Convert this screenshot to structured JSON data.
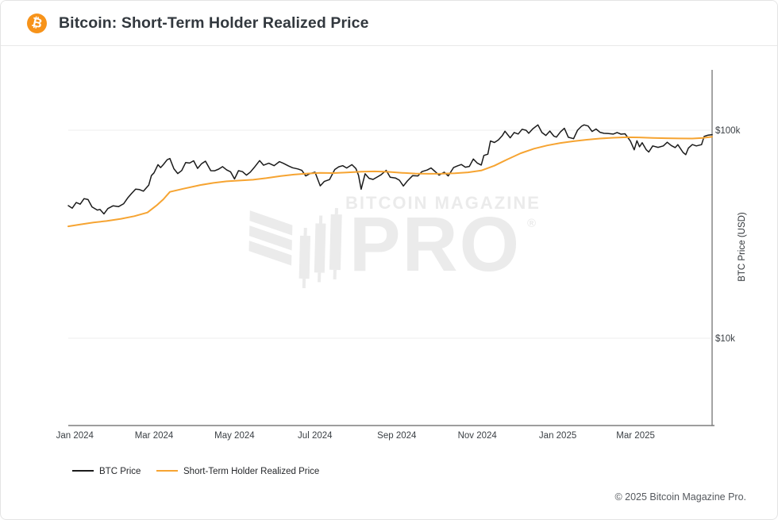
{
  "header": {
    "title": "Bitcoin: Short-Term Holder Realized Price",
    "icon_glyph": "₿"
  },
  "watermark": {
    "line1": "BITCOIN MAGAZINE",
    "line2": "PRO",
    "registered": "®"
  },
  "footer": {
    "copyright": "© 2025 Bitcoin Magazine Pro."
  },
  "colors": {
    "brand_orange": "#f7931a",
    "btc_line": "#1b1b1b",
    "sth_line": "#f6a432",
    "grid": "#ededed",
    "axis": "#7e7e7e",
    "watermark": "#ebebeb"
  },
  "chart_data": {
    "type": "line",
    "title": "Bitcoin: Short-Term Holder Realized Price",
    "ylabel": "BTC Price (USD)",
    "y_scale": "log",
    "units": "USD thousands",
    "grid": "horizontal-only",
    "legend_position": "bottom-left",
    "x_range": [
      "2023-12-27",
      "2025-04-28"
    ],
    "ylim_k": [
      3.8,
      195
    ],
    "x_ticks": [
      {
        "date": "2024-01-01",
        "label": "Jan 2024"
      },
      {
        "date": "2024-03-01",
        "label": "Mar 2024"
      },
      {
        "date": "2024-05-01",
        "label": "May 2024"
      },
      {
        "date": "2024-07-01",
        "label": "Jul 2024"
      },
      {
        "date": "2024-09-01",
        "label": "Sep 2024"
      },
      {
        "date": "2024-11-01",
        "label": "Nov 2024"
      },
      {
        "date": "2025-01-01",
        "label": "Jan 2025"
      },
      {
        "date": "2025-03-01",
        "label": "Mar 2025"
      }
    ],
    "y_ticks": [
      {
        "value_k": 100,
        "label": "$100k"
      },
      {
        "value_k": 10,
        "label": "$10k"
      }
    ],
    "series": [
      {
        "name": "BTC Price",
        "color": "#1b1b1b",
        "points": [
          [
            "2023-12-27",
            43.4
          ],
          [
            "2023-12-30",
            42.2
          ],
          [
            "2024-01-02",
            44.9
          ],
          [
            "2024-01-05",
            44.1
          ],
          [
            "2024-01-08",
            46.9
          ],
          [
            "2024-01-11",
            46.4
          ],
          [
            "2024-01-14",
            42.8
          ],
          [
            "2024-01-18",
            41.3
          ],
          [
            "2024-01-20",
            41.6
          ],
          [
            "2024-01-23",
            39.6
          ],
          [
            "2024-01-26",
            42.0
          ],
          [
            "2024-01-30",
            43.3
          ],
          [
            "2024-02-03",
            42.9
          ],
          [
            "2024-02-07",
            44.3
          ],
          [
            "2024-02-10",
            47.2
          ],
          [
            "2024-02-13",
            49.7
          ],
          [
            "2024-02-16",
            52.1
          ],
          [
            "2024-02-19",
            51.8
          ],
          [
            "2024-02-22",
            50.9
          ],
          [
            "2024-02-26",
            54.5
          ],
          [
            "2024-02-28",
            60.5
          ],
          [
            "2024-03-01",
            62.4
          ],
          [
            "2024-03-04",
            68.3
          ],
          [
            "2024-03-06",
            66.1
          ],
          [
            "2024-03-08",
            68.3
          ],
          [
            "2024-03-11",
            72.1
          ],
          [
            "2024-03-13",
            73.1
          ],
          [
            "2024-03-16",
            65.3
          ],
          [
            "2024-03-19",
            61.9
          ],
          [
            "2024-03-22",
            64.0
          ],
          [
            "2024-03-25",
            69.9
          ],
          [
            "2024-03-28",
            69.5
          ],
          [
            "2024-03-31",
            71.3
          ],
          [
            "2024-04-03",
            65.5
          ],
          [
            "2024-04-06",
            69.0
          ],
          [
            "2024-04-09",
            71.0
          ],
          [
            "2024-04-13",
            63.9
          ],
          [
            "2024-04-16",
            63.8
          ],
          [
            "2024-04-19",
            65.0
          ],
          [
            "2024-04-22",
            66.8
          ],
          [
            "2024-04-25",
            64.5
          ],
          [
            "2024-04-28",
            63.1
          ],
          [
            "2024-05-01",
            58.3
          ],
          [
            "2024-05-04",
            63.9
          ],
          [
            "2024-05-07",
            63.2
          ],
          [
            "2024-05-10",
            60.8
          ],
          [
            "2024-05-13",
            62.9
          ],
          [
            "2024-05-16",
            66.2
          ],
          [
            "2024-05-20",
            71.4
          ],
          [
            "2024-05-23",
            67.9
          ],
          [
            "2024-05-27",
            69.4
          ],
          [
            "2024-05-31",
            67.5
          ],
          [
            "2024-06-04",
            70.6
          ],
          [
            "2024-06-07",
            69.3
          ],
          [
            "2024-06-11",
            67.3
          ],
          [
            "2024-06-14",
            66.0
          ],
          [
            "2024-06-18",
            65.1
          ],
          [
            "2024-06-21",
            64.1
          ],
          [
            "2024-06-24",
            60.3
          ],
          [
            "2024-06-27",
            61.7
          ],
          [
            "2024-07-01",
            62.8
          ],
          [
            "2024-07-05",
            54.0
          ],
          [
            "2024-07-08",
            56.7
          ],
          [
            "2024-07-12",
            57.9
          ],
          [
            "2024-07-16",
            64.7
          ],
          [
            "2024-07-19",
            66.7
          ],
          [
            "2024-07-22",
            67.5
          ],
          [
            "2024-07-25",
            65.8
          ],
          [
            "2024-07-29",
            68.3
          ],
          [
            "2024-08-01",
            65.4
          ],
          [
            "2024-08-03",
            60.7
          ],
          [
            "2024-08-05",
            52.0
          ],
          [
            "2024-08-08",
            61.7
          ],
          [
            "2024-08-11",
            58.7
          ],
          [
            "2024-08-14",
            58.0
          ],
          [
            "2024-08-17",
            59.5
          ],
          [
            "2024-08-20",
            61.0
          ],
          [
            "2024-08-24",
            64.1
          ],
          [
            "2024-08-27",
            59.4
          ],
          [
            "2024-08-31",
            58.9
          ],
          [
            "2024-09-03",
            57.5
          ],
          [
            "2024-09-06",
            53.9
          ],
          [
            "2024-09-09",
            57.0
          ],
          [
            "2024-09-13",
            60.5
          ],
          [
            "2024-09-17",
            60.3
          ],
          [
            "2024-09-20",
            63.2
          ],
          [
            "2024-09-24",
            64.3
          ],
          [
            "2024-09-27",
            65.8
          ],
          [
            "2024-09-30",
            63.3
          ],
          [
            "2024-10-03",
            60.8
          ],
          [
            "2024-10-07",
            62.8
          ],
          [
            "2024-10-10",
            60.3
          ],
          [
            "2024-10-14",
            66.1
          ],
          [
            "2024-10-17",
            67.4
          ],
          [
            "2024-10-20",
            68.4
          ],
          [
            "2024-10-23",
            66.4
          ],
          [
            "2024-10-26",
            67.0
          ],
          [
            "2024-10-29",
            72.7
          ],
          [
            "2024-11-01",
            69.5
          ],
          [
            "2024-11-04",
            68.0
          ],
          [
            "2024-11-06",
            75.6
          ],
          [
            "2024-11-09",
            76.7
          ],
          [
            "2024-11-11",
            88.7
          ],
          [
            "2024-11-14",
            87.3
          ],
          [
            "2024-11-17",
            89.8
          ],
          [
            "2024-11-20",
            94.3
          ],
          [
            "2024-11-22",
            98.9
          ],
          [
            "2024-11-26",
            91.9
          ],
          [
            "2024-11-29",
            97.5
          ],
          [
            "2024-12-02",
            95.9
          ],
          [
            "2024-12-05",
            101.1
          ],
          [
            "2024-12-08",
            99.9
          ],
          [
            "2024-12-10",
            96.6
          ],
          [
            "2024-12-13",
            101.4
          ],
          [
            "2024-12-17",
            106.1
          ],
          [
            "2024-12-20",
            97.5
          ],
          [
            "2024-12-23",
            94.4
          ],
          [
            "2024-12-26",
            99.0
          ],
          [
            "2024-12-29",
            93.7
          ],
          [
            "2024-12-31",
            92.6
          ],
          [
            "2025-01-03",
            98.1
          ],
          [
            "2025-01-06",
            102.1
          ],
          [
            "2025-01-09",
            92.5
          ],
          [
            "2025-01-13",
            91.0
          ],
          [
            "2025-01-16",
            100.0
          ],
          [
            "2025-01-19",
            104.5
          ],
          [
            "2025-01-21",
            106.1
          ],
          [
            "2025-01-24",
            104.8
          ],
          [
            "2025-01-27",
            98.6
          ],
          [
            "2025-01-30",
            101.3
          ],
          [
            "2025-02-02",
            97.7
          ],
          [
            "2025-02-05",
            96.6
          ],
          [
            "2025-02-08",
            96.5
          ],
          [
            "2025-02-12",
            95.8
          ],
          [
            "2025-02-15",
            97.5
          ],
          [
            "2025-02-18",
            95.7
          ],
          [
            "2025-02-21",
            96.1
          ],
          [
            "2025-02-25",
            88.7
          ],
          [
            "2025-02-28",
            80.5
          ],
          [
            "2025-03-02",
            89.0
          ],
          [
            "2025-03-04",
            83.2
          ],
          [
            "2025-03-06",
            87.0
          ],
          [
            "2025-03-09",
            80.7
          ],
          [
            "2025-03-11",
            78.5
          ],
          [
            "2025-03-14",
            84.0
          ],
          [
            "2025-03-18",
            82.7
          ],
          [
            "2025-03-22",
            84.0
          ],
          [
            "2025-03-25",
            87.5
          ],
          [
            "2025-03-28",
            84.4
          ],
          [
            "2025-03-31",
            82.5
          ],
          [
            "2025-04-02",
            85.2
          ],
          [
            "2025-04-06",
            78.2
          ],
          [
            "2025-04-08",
            76.3
          ],
          [
            "2025-04-10",
            82.0
          ],
          [
            "2025-04-13",
            85.3
          ],
          [
            "2025-04-16",
            84.0
          ],
          [
            "2025-04-20",
            85.2
          ],
          [
            "2025-04-22",
            93.4
          ],
          [
            "2025-04-25",
            94.7
          ],
          [
            "2025-04-28",
            95.2
          ]
        ]
      },
      {
        "name": "Short-Term Holder Realized Price",
        "color": "#f6a432",
        "points": [
          [
            "2023-12-27",
            34.5
          ],
          [
            "2024-01-05",
            35.2
          ],
          [
            "2024-01-15",
            36.0
          ],
          [
            "2024-01-25",
            36.6
          ],
          [
            "2024-02-05",
            37.5
          ],
          [
            "2024-02-15",
            38.6
          ],
          [
            "2024-02-25",
            40.2
          ],
          [
            "2024-03-03",
            43.5
          ],
          [
            "2024-03-08",
            46.5
          ],
          [
            "2024-03-13",
            50.5
          ],
          [
            "2024-03-23",
            52.3
          ],
          [
            "2024-04-05",
            54.5
          ],
          [
            "2024-04-15",
            55.8
          ],
          [
            "2024-04-25",
            56.8
          ],
          [
            "2024-05-05",
            57.3
          ],
          [
            "2024-05-15",
            57.8
          ],
          [
            "2024-05-25",
            58.8
          ],
          [
            "2024-06-05",
            60.2
          ],
          [
            "2024-06-15",
            61.2
          ],
          [
            "2024-06-25",
            61.9
          ],
          [
            "2024-07-05",
            62.3
          ],
          [
            "2024-07-15",
            62.2
          ],
          [
            "2024-07-25",
            62.6
          ],
          [
            "2024-08-05",
            63.2
          ],
          [
            "2024-08-15",
            63.4
          ],
          [
            "2024-08-25",
            63.1
          ],
          [
            "2024-09-05",
            62.4
          ],
          [
            "2024-09-15",
            61.9
          ],
          [
            "2024-09-25",
            61.7
          ],
          [
            "2024-10-05",
            61.8
          ],
          [
            "2024-10-15",
            62.1
          ],
          [
            "2024-10-25",
            62.7
          ],
          [
            "2024-11-04",
            64.0
          ],
          [
            "2024-11-14",
            67.5
          ],
          [
            "2024-11-24",
            72.5
          ],
          [
            "2024-12-04",
            77.5
          ],
          [
            "2024-12-14",
            81.5
          ],
          [
            "2024-12-24",
            84.5
          ],
          [
            "2025-01-03",
            86.8
          ],
          [
            "2025-01-13",
            88.5
          ],
          [
            "2025-01-23",
            90.0
          ],
          [
            "2025-02-02",
            91.2
          ],
          [
            "2025-02-12",
            92.0
          ],
          [
            "2025-02-22",
            92.5
          ],
          [
            "2025-03-04",
            92.3
          ],
          [
            "2025-03-14",
            91.8
          ],
          [
            "2025-03-24",
            91.5
          ],
          [
            "2025-04-03",
            91.3
          ],
          [
            "2025-04-13",
            91.2
          ],
          [
            "2025-04-21",
            91.8
          ],
          [
            "2025-04-28",
            93.0
          ]
        ]
      }
    ]
  }
}
